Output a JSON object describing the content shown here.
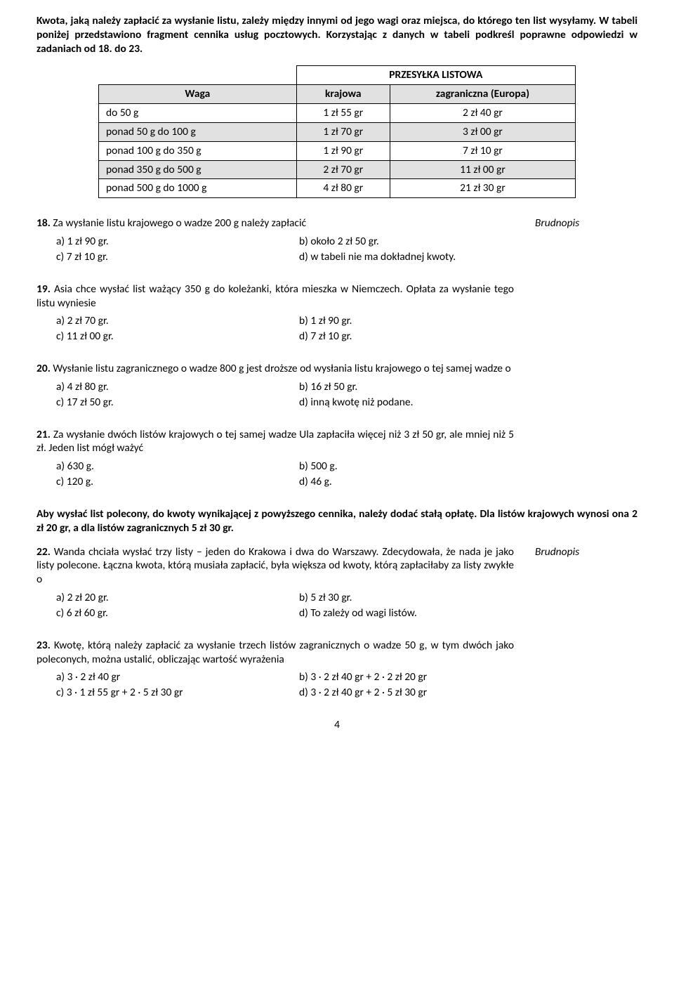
{
  "intro": "Kwota, jaką należy zapłacić za wysłanie listu, zależy między innymi od jego wagi oraz miejsca, do którego ten list wysyłamy. W tabeli poniżej przedstawiono fragment cennika usług pocztowych. Korzystając z danych w tabeli podkreśl poprawne odpowiedzi w zadaniach od 18. do 23.",
  "table": {
    "title": "PRZESYŁKA LISTOWA",
    "col_waga": "Waga",
    "col_kraj": "krajowa",
    "col_zagr": "zagraniczna (Europa)",
    "rows": [
      {
        "w": "do 50 g",
        "k": "1 zł 55 gr",
        "z": "2 zł 40 gr"
      },
      {
        "w": "ponad 50 g do 100 g",
        "k": "1 zł 70 gr",
        "z": "3 zł 00 gr"
      },
      {
        "w": "ponad 100 g do 350 g",
        "k": "1 zł 90 gr",
        "z": "7 zł 10 gr"
      },
      {
        "w": "ponad 350 g do 500 g",
        "k": "2 zł 70 gr",
        "z": "11 zł 00 gr"
      },
      {
        "w": "ponad 500 g do 1000 g",
        "k": "4 zł 80 gr",
        "z": "21 zł 30 gr"
      }
    ]
  },
  "brudnopis": "Brudnopis",
  "q18": {
    "num": "18.",
    "text": "Za wysłanie listu krajowego o wadze 200 g należy zapłacić",
    "a": "a)  1 zł 90 gr.",
    "b": "b)  około 2 zł 50 gr.",
    "c": "c)  7 zł 10 gr.",
    "d": "d) w tabeli nie ma dokładnej kwoty."
  },
  "q19": {
    "num": "19.",
    "text": "Asia chce wysłać list ważący 350 g do koleżanki, która mieszka w Niemczech. Opłata za wysłanie tego listu wyniesie",
    "a": "a)  2 zł 70 gr.",
    "b": "b)  1 zł 90 gr.",
    "c": "c)  11 zł 00 gr.",
    "d": "d)  7 zł 10 gr."
  },
  "q20": {
    "num": "20.",
    "text": "Wysłanie listu zagranicznego o wadze 800 g jest droższe od wysłania listu krajowego o tej samej wadze o",
    "a": "a)  4 zł 80 gr.",
    "b": "b)  16 zł 50 gr.",
    "c": "c)  17 zł 50 gr.",
    "d": "d)  inną kwotę niż podane."
  },
  "q21": {
    "num": "21.",
    "text": "Za wysłanie dwóch listów krajowych o tej samej wadze Ula zapłaciła więcej niż 3 zł 50 gr, ale mniej niż 5 zł. Jeden list mógł ważyć",
    "a": "a)  630 g.",
    "b": "b)  500 g.",
    "c": "c)  120 g.",
    "d": "d)  46 g."
  },
  "section2": "Aby wysłać list polecony, do kwoty wynikającej z powyższego cennika, należy dodać stałą opłatę. Dla listów krajowych wynosi ona 2 zł 20 gr, a dla listów zagranicznych 5 zł 30 gr.",
  "q22": {
    "num": "22.",
    "text": "Wanda chciała wysłać trzy listy – jeden do Krakowa i dwa do Warszawy. Zdecydowała, że nada je jako listy polecone. Łączna kwota, którą musiała zapłacić, była większa od kwoty, którą zapłaciłaby za listy zwykłe o",
    "a": "a)  2 zł 20 gr.",
    "b": "b)  5 zł 30 gr.",
    "c": "c)  6 zł 60 gr.",
    "d": "d)  To zależy od wagi listów."
  },
  "q23": {
    "num": "23.",
    "text": "Kwotę, którą należy zapłacić za wysłanie trzech listów zagranicznych o wadze 50 g, w tym dwóch jako poleconych, można ustalić, obliczając wartość wyrażenia",
    "a": "a)  3 · 2 zł 40 gr",
    "b": "b)  3 · 2 zł 40 gr + 2 · 2 zł 20 gr",
    "c": "c)  3 · 1 zł 55 gr + 2 · 5 zł 30 gr",
    "d": "d)  3 · 2 zł 40 gr + 2 · 5 zł 30 gr"
  },
  "pageno": "4"
}
